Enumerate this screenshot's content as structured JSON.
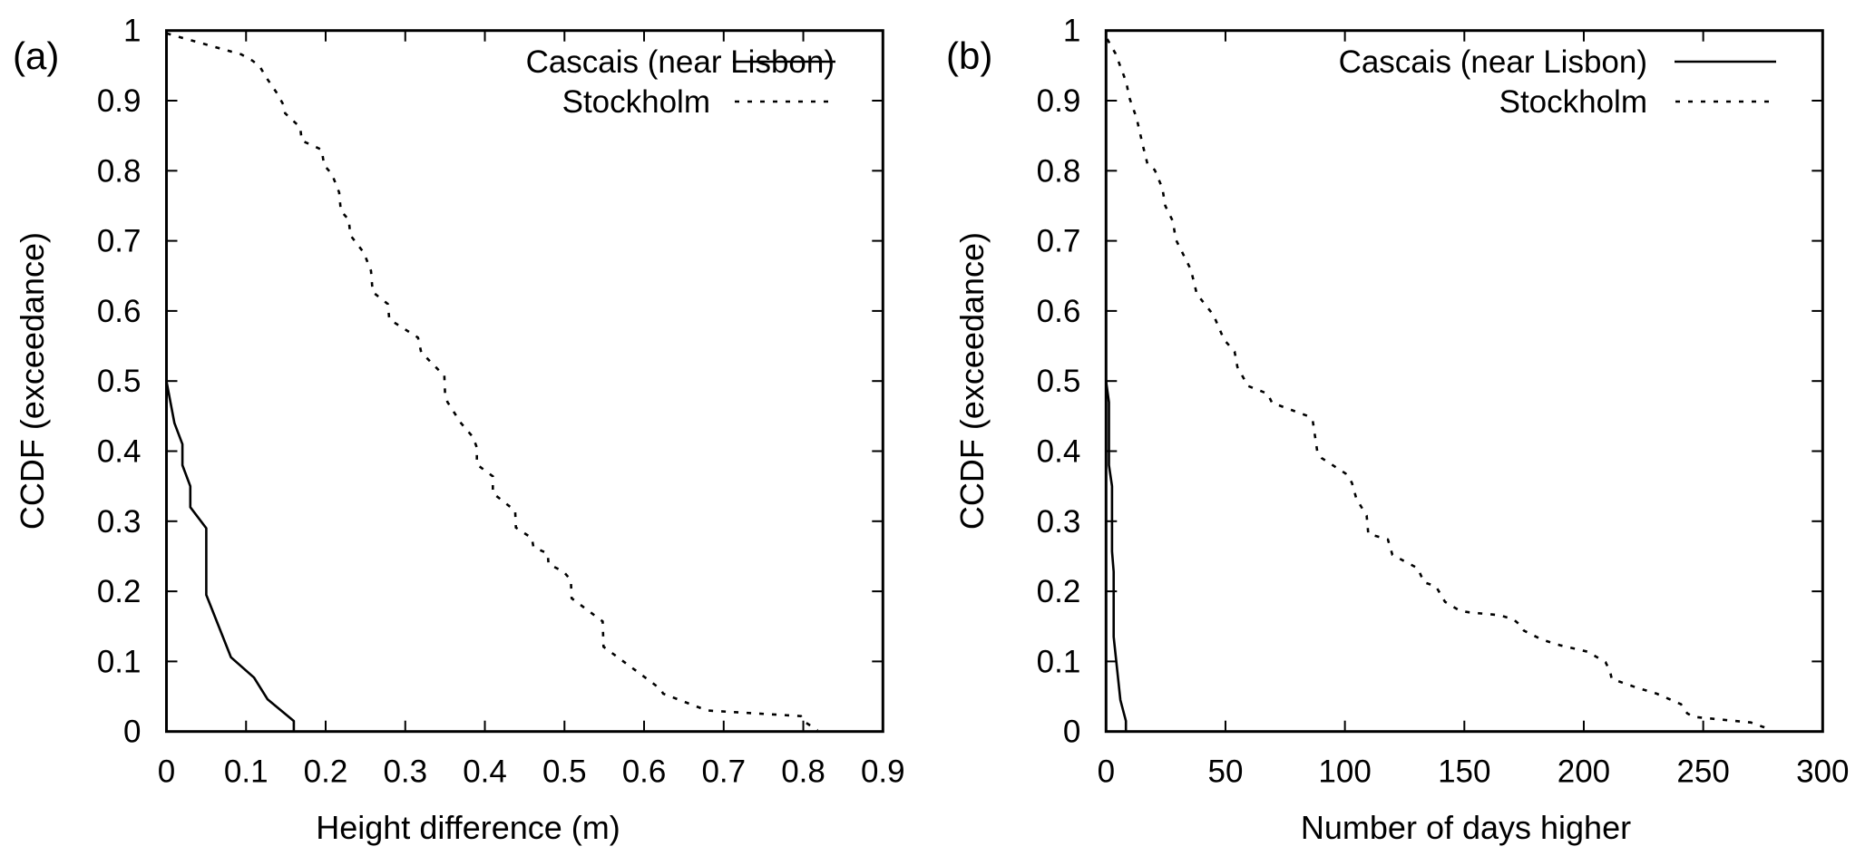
{
  "chart_data": [
    {
      "type": "line",
      "panel_label": "(a)",
      "title": "",
      "xlabel": "Height difference (m)",
      "ylabel": "CCDF (exceedance)",
      "xlim": [
        0,
        0.9
      ],
      "ylim": [
        0,
        1
      ],
      "xticks": [
        "0",
        "0.1",
        "0.2",
        "0.3",
        "0.4",
        "0.5",
        "0.6",
        "0.7",
        "0.8",
        "0.9"
      ],
      "xtick_values": [
        0,
        0.1,
        0.2,
        0.3,
        0.4,
        0.5,
        0.6,
        0.7,
        0.8,
        0.9
      ],
      "yticks": [
        "0",
        "0.1",
        "0.2",
        "0.3",
        "0.4",
        "0.5",
        "0.6",
        "0.7",
        "0.8",
        "0.9",
        "1"
      ],
      "ytick_values": [
        0,
        0.1,
        0.2,
        0.3,
        0.4,
        0.5,
        0.6,
        0.7,
        0.8,
        0.9,
        1
      ],
      "grid": false,
      "legend_position": "top-right",
      "series": [
        {
          "name": "Cascais (near Lisbon)",
          "style": "solid",
          "x": [
            0,
            0.01,
            0.02,
            0.02,
            0.03,
            0.03,
            0.05,
            0.05,
            0.081,
            0.11,
            0.127,
            0.16,
            0.16
          ],
          "y": [
            0.5,
            0.44,
            0.41,
            0.38,
            0.35,
            0.32,
            0.29,
            0.195,
            0.106,
            0.077,
            0.046,
            0.015,
            0
          ]
        },
        {
          "name": "Stockholm",
          "style": "dotted",
          "x": [
            0,
            0.094,
            0.108,
            0.117,
            0.126,
            0.138,
            0.147,
            0.149,
            0.168,
            0.17,
            0.195,
            0.198,
            0.208,
            0.217,
            0.219,
            0.229,
            0.231,
            0.248,
            0.257,
            0.259,
            0.278,
            0.28,
            0.316,
            0.32,
            0.346,
            0.349,
            0.35,
            0.353,
            0.37,
            0.385,
            0.39,
            0.39,
            0.41,
            0.41,
            0.438,
            0.439,
            0.459,
            0.461,
            0.479,
            0.48,
            0.499,
            0.508,
            0.509,
            0.548,
            0.549,
            0.58,
            0.611,
            0.621,
            0.624,
            0.679,
            0.797,
            0.8,
            0.818
          ],
          "y": [
            0.996,
            0.966,
            0.957,
            0.949,
            0.932,
            0.912,
            0.894,
            0.882,
            0.862,
            0.843,
            0.83,
            0.808,
            0.795,
            0.769,
            0.743,
            0.73,
            0.708,
            0.683,
            0.657,
            0.627,
            0.61,
            0.588,
            0.562,
            0.541,
            0.511,
            0.509,
            0.483,
            0.47,
            0.44,
            0.42,
            0.405,
            0.381,
            0.364,
            0.34,
            0.315,
            0.291,
            0.276,
            0.263,
            0.254,
            0.239,
            0.228,
            0.216,
            0.19,
            0.157,
            0.121,
            0.095,
            0.069,
            0.06,
            0.054,
            0.03,
            0.022,
            0.015,
            0.002
          ]
        }
      ]
    },
    {
      "type": "line",
      "panel_label": "(b)",
      "title": "",
      "xlabel": "Number of days higher",
      "ylabel": "CCDF (exceedance)",
      "xlim": [
        0,
        300
      ],
      "ylim": [
        0,
        1
      ],
      "xticks": [
        "0",
        "50",
        "100",
        "150",
        "200",
        "250",
        "300"
      ],
      "xtick_values": [
        0,
        50,
        100,
        150,
        200,
        250,
        300
      ],
      "yticks": [
        "0",
        "0.1",
        "0.2",
        "0.3",
        "0.4",
        "0.5",
        "0.6",
        "0.7",
        "0.8",
        "0.9",
        "1"
      ],
      "ytick_values": [
        0,
        0.1,
        0.2,
        0.3,
        0.4,
        0.5,
        0.6,
        0.7,
        0.8,
        0.9,
        1
      ],
      "grid": false,
      "legend_position": "top-right",
      "series": [
        {
          "name": "Cascais (near Lisbon)",
          "style": "solid",
          "x": [
            0,
            1.2,
            1.2,
            2.5,
            2.5,
            3.2,
            3.2,
            6,
            8.3,
            8.3
          ],
          "y": [
            0.5,
            0.47,
            0.38,
            0.35,
            0.257,
            0.228,
            0.135,
            0.045,
            0.015,
            0
          ]
        },
        {
          "name": "Stockholm",
          "style": "dotted",
          "x": [
            0.5,
            4,
            8.5,
            9.7,
            12.8,
            15.4,
            17.3,
            20.4,
            23.6,
            24.8,
            28,
            29.2,
            35.5,
            38,
            45,
            49.4,
            53.8,
            55,
            59.4,
            67.6,
            69.5,
            84.6,
            86.5,
            88.4,
            90.3,
            100.3,
            102.9,
            104.8,
            109.1,
            109.8,
            118,
            119.9,
            130.5,
            133.1,
            138.1,
            141.9,
            148.2,
            152.2,
            164.8,
            170.5,
            173,
            174.9,
            182.5,
            190.1,
            201.5,
            209.1,
            211,
            211.7,
            221.8,
            230.6,
            240.7,
            243.3,
            245.8,
            269.9,
            275.6,
            278.1
          ],
          "y": [
            0.988,
            0.967,
            0.926,
            0.905,
            0.875,
            0.836,
            0.81,
            0.801,
            0.775,
            0.75,
            0.728,
            0.702,
            0.659,
            0.624,
            0.594,
            0.559,
            0.542,
            0.52,
            0.493,
            0.482,
            0.469,
            0.45,
            0.444,
            0.4,
            0.39,
            0.368,
            0.355,
            0.332,
            0.308,
            0.282,
            0.274,
            0.252,
            0.233,
            0.213,
            0.207,
            0.185,
            0.172,
            0.17,
            0.166,
            0.16,
            0.153,
            0.144,
            0.131,
            0.123,
            0.114,
            0.099,
            0.086,
            0.075,
            0.063,
            0.054,
            0.039,
            0.026,
            0.021,
            0.013,
            0.006,
            0.001
          ]
        }
      ]
    }
  ]
}
